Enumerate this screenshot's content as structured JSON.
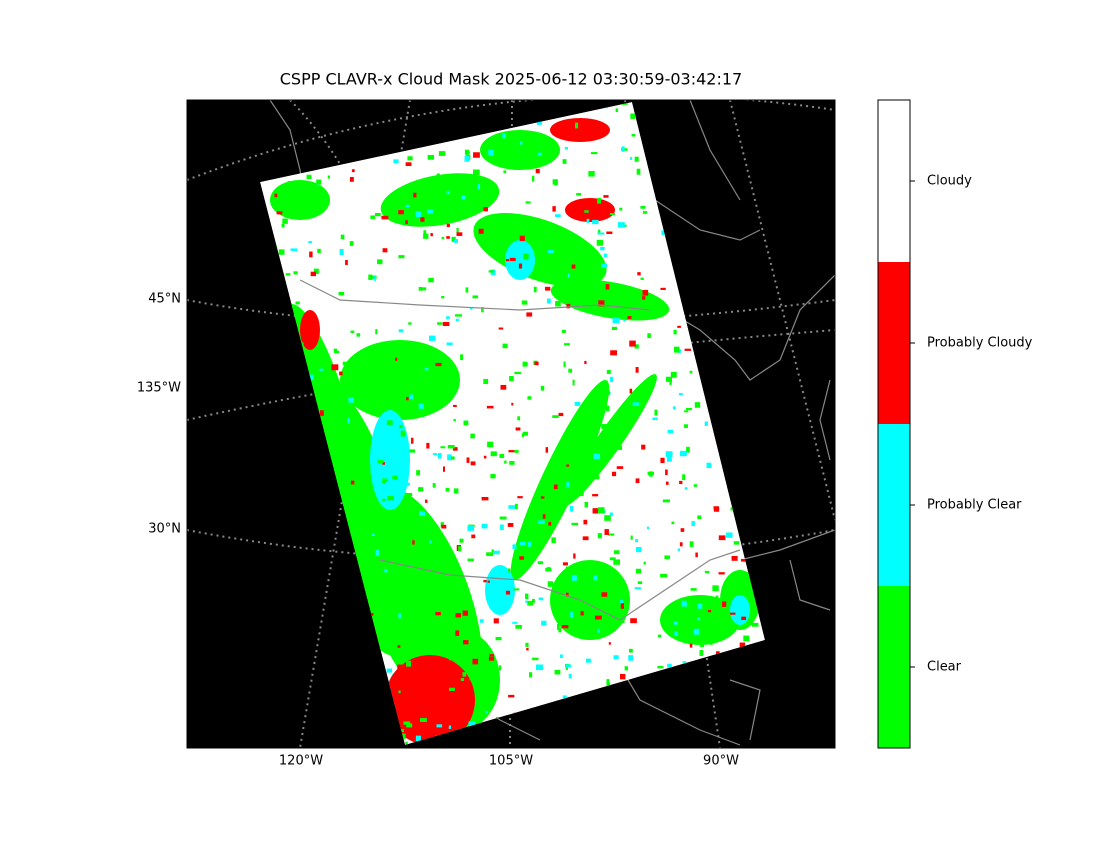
{
  "title": "CSPP CLAVR-x Cloud Mask 2025-06-12 03:30:59-03:42:17",
  "map": {
    "lat_labels": [
      "45°N",
      "30°N"
    ],
    "lon_label_left": "135°W",
    "lon_labels_bottom": [
      "120°W",
      "105°W",
      "90°W"
    ]
  },
  "colorbar": {
    "classes": [
      {
        "label": "Clear",
        "color": "#00ff00"
      },
      {
        "label": "Probably Clear",
        "color": "#00ffff"
      },
      {
        "label": "Probably Cloudy",
        "color": "#ff0000"
      },
      {
        "label": "Cloudy",
        "color": "#ffffff"
      }
    ]
  }
}
